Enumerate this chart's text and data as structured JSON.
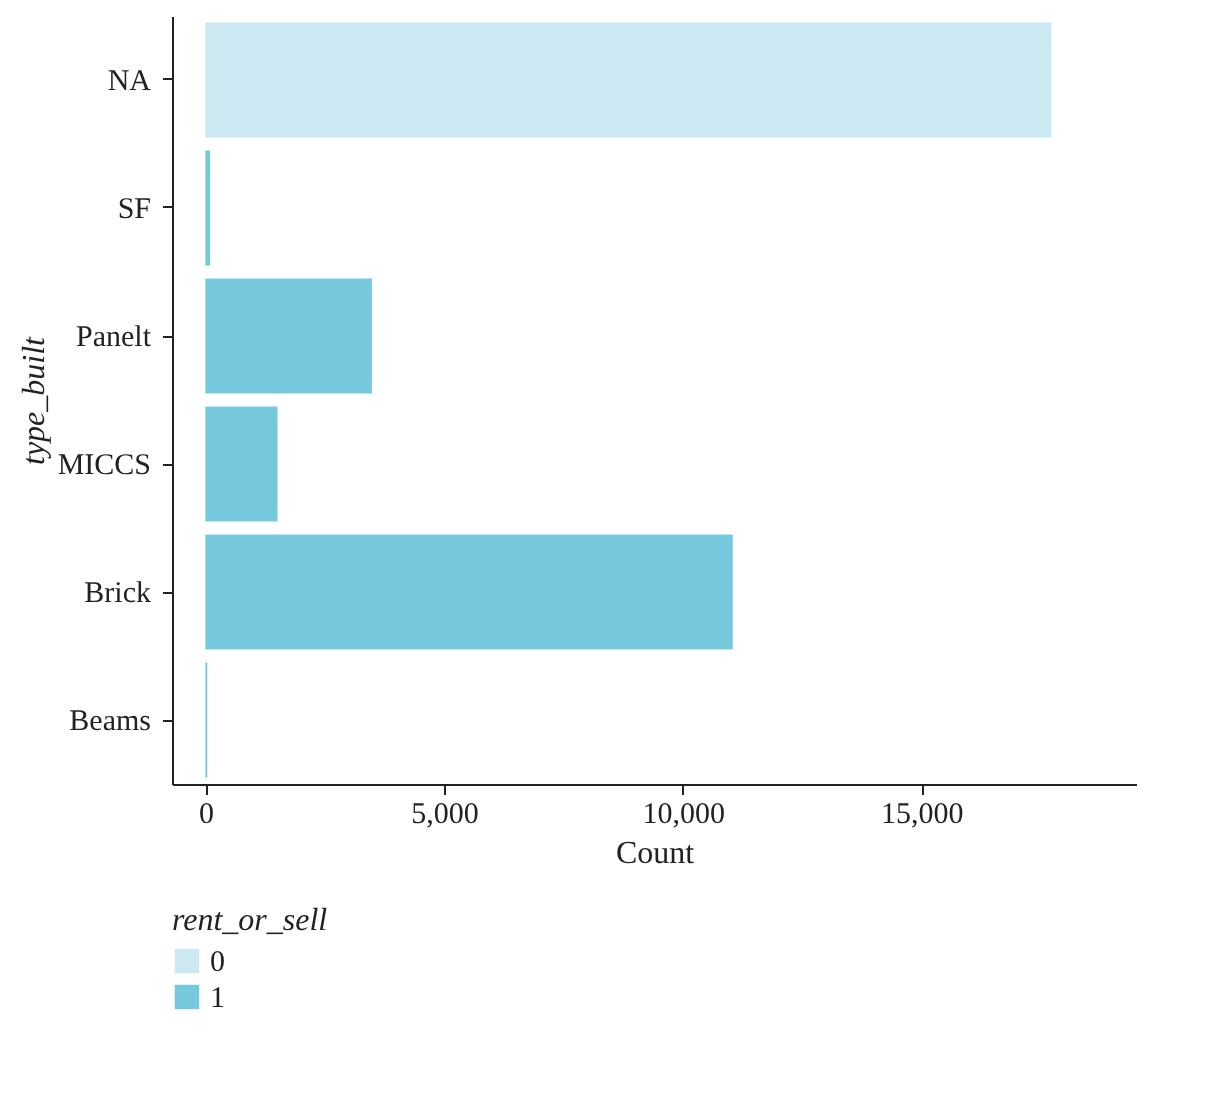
{
  "chart_data": {
    "type": "bar",
    "orientation": "horizontal",
    "xlabel": "Count",
    "ylabel": "type_built",
    "legend_title": "rent_or_sell",
    "legend": "bottom left",
    "grid": false,
    "categories": [
      "NA",
      "SF",
      "Panelt",
      "MICCS",
      "Brick",
      "Beams"
    ],
    "series": [
      {
        "name": "0",
        "color": "#cce8f2",
        "values": [
          17730,
          null,
          null,
          null,
          null,
          null
        ]
      },
      {
        "name": "1",
        "color": "#76c8dc",
        "values": [
          null,
          100,
          3490,
          1510,
          11050,
          40
        ]
      }
    ],
    "xlim": [
      -700,
      19500
    ],
    "xticks": [
      0,
      {
        "value": 5000,
        "label": "5,000"
      },
      {
        "value": 10000,
        "label": "10,000"
      },
      {
        "value": 15000,
        "label": "15,000"
      }
    ]
  }
}
